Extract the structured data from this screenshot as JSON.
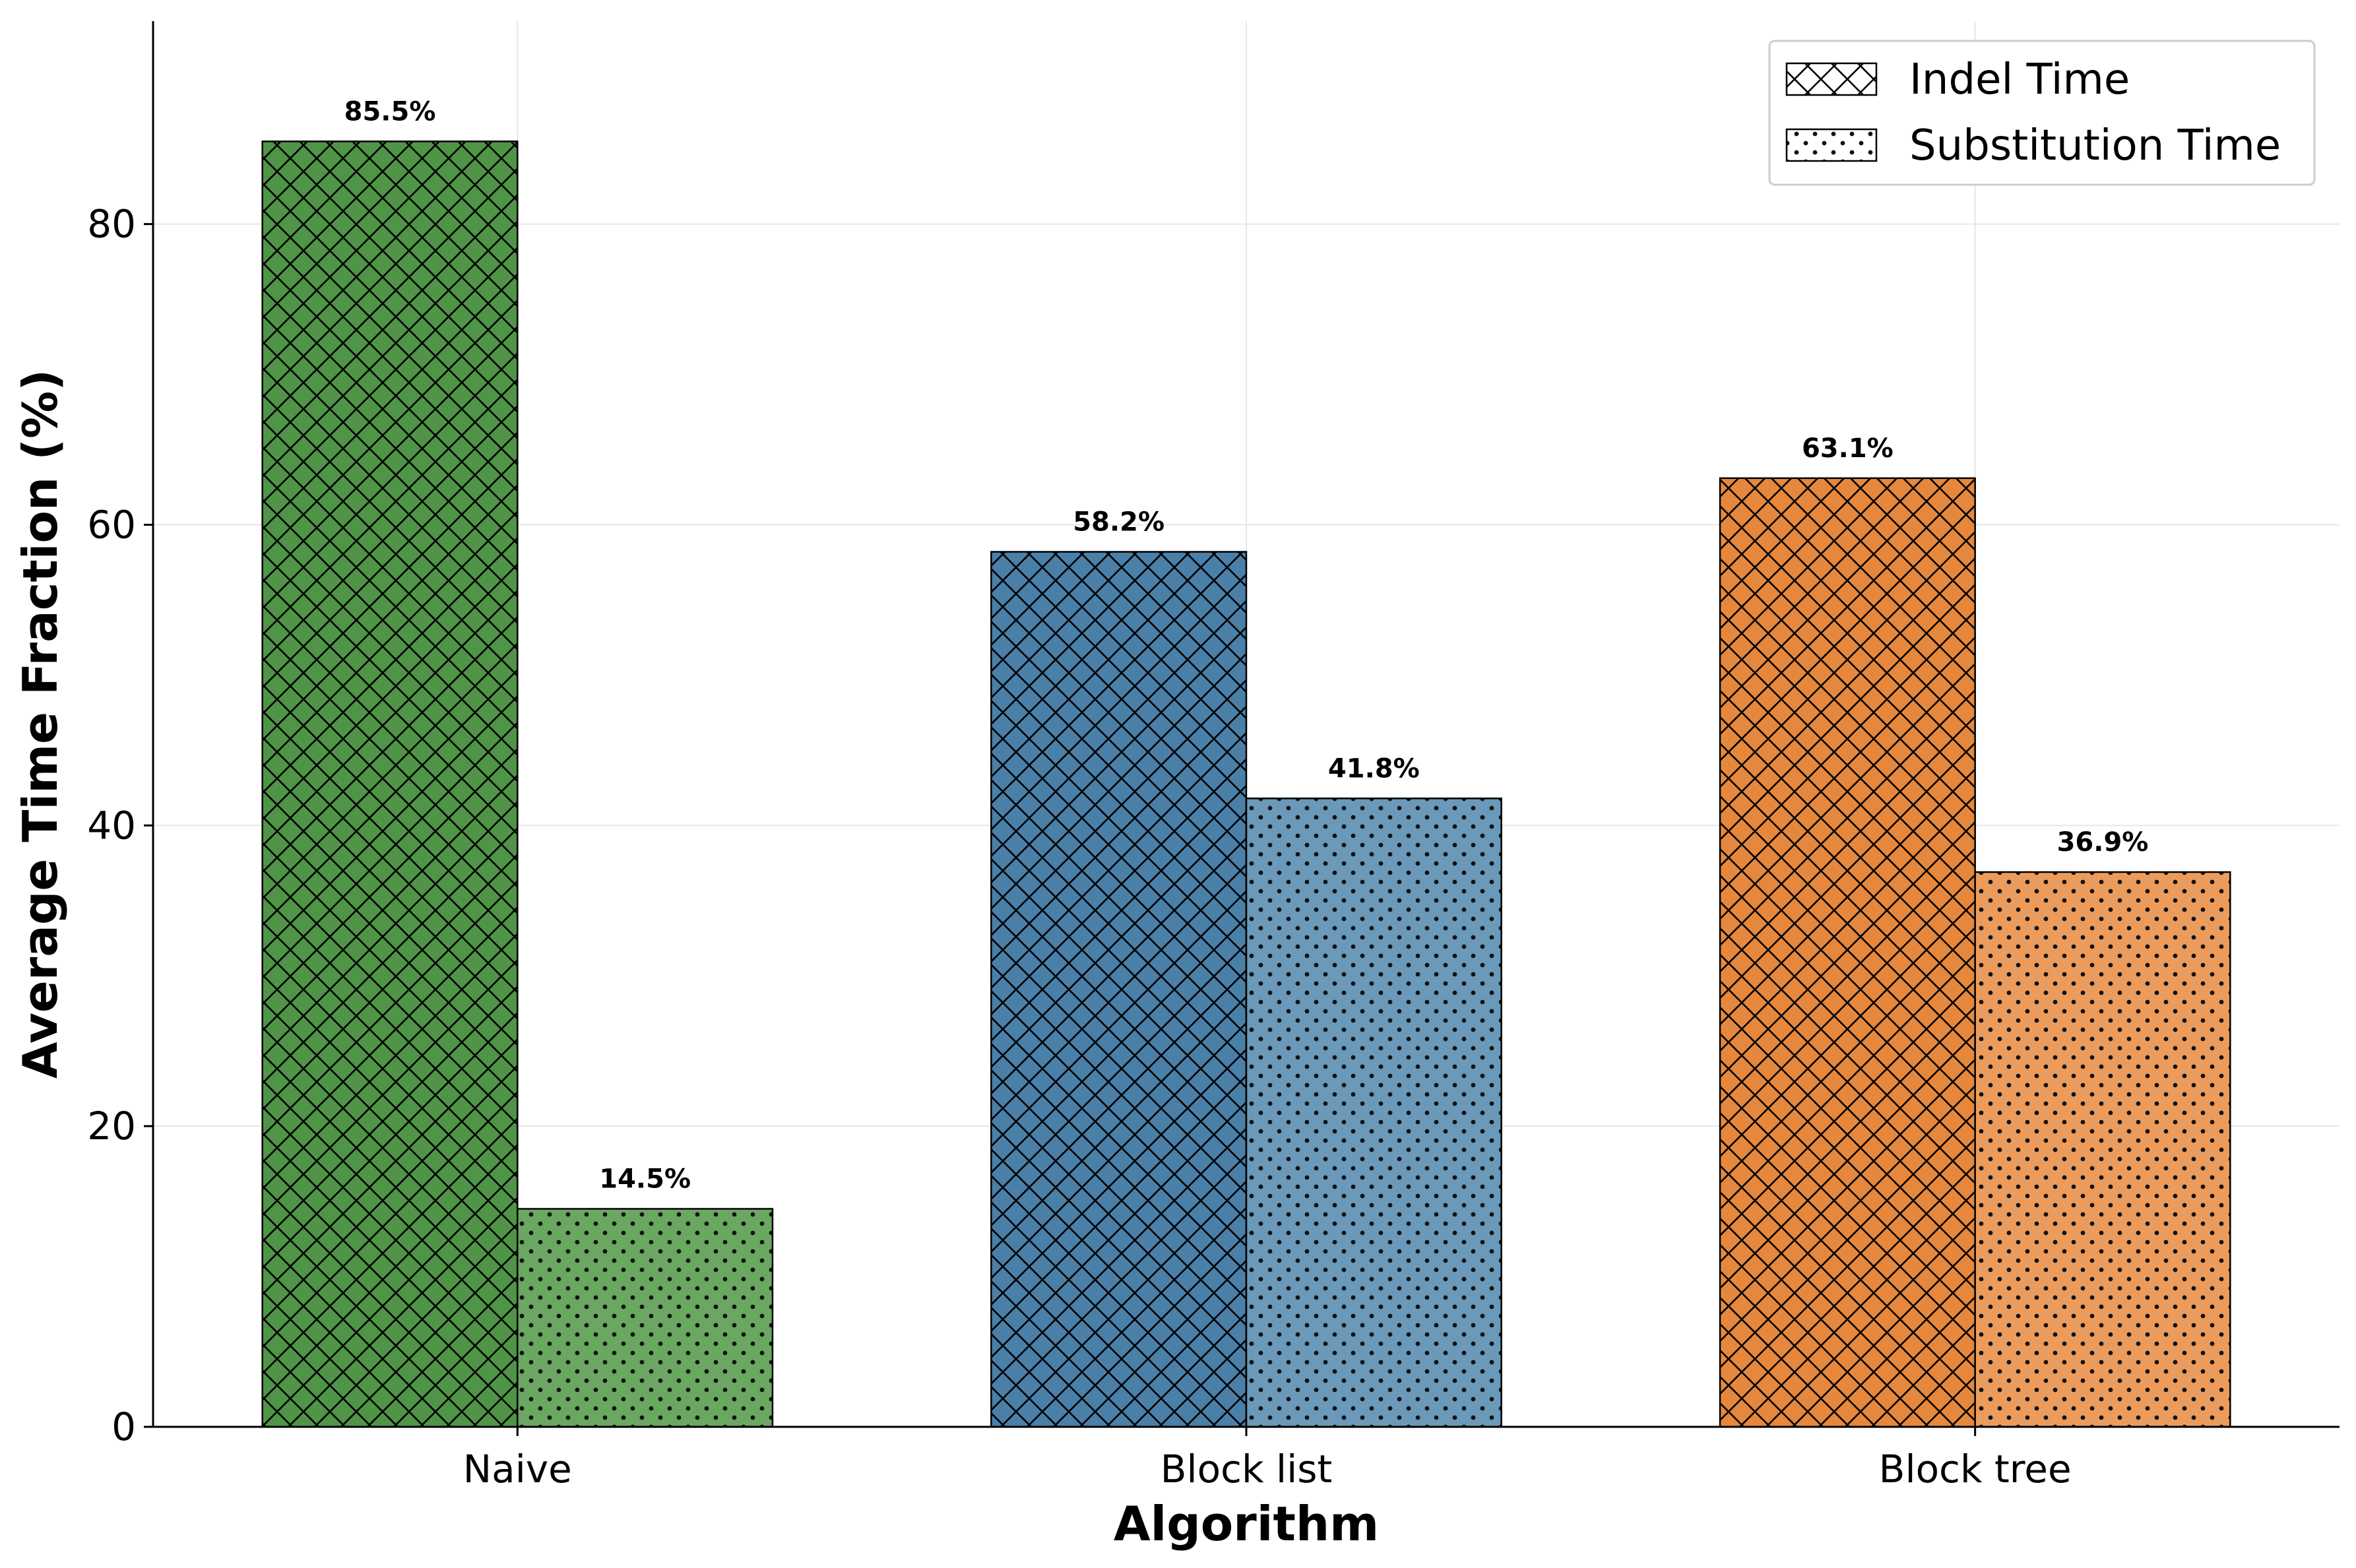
{
  "chart_data": {
    "type": "bar",
    "xlabel": "Algorithm",
    "ylabel": "Average Time Fraction (%)",
    "categories": [
      "Naive",
      "Block list",
      "Block tree"
    ],
    "series": [
      {
        "name": "Indel Time",
        "values": [
          85.5,
          58.2,
          63.1
        ],
        "labels": [
          "85.5%",
          "58.2%",
          "63.1%"
        ],
        "hatch": "crosshatch"
      },
      {
        "name": "Substitution Time",
        "values": [
          14.5,
          41.8,
          36.9
        ],
        "labels": [
          "14.5%",
          "41.8%",
          "36.9%"
        ],
        "hatch": "dots"
      }
    ],
    "category_colors": {
      "indel": [
        "#4f9447",
        "#4a7fa8",
        "#e5883d"
      ],
      "substitution": [
        "#6aa761",
        "#6a99b9",
        "#eb9c5d"
      ]
    },
    "ylim": [
      0,
      93.5
    ],
    "yticks": [
      0,
      20,
      40,
      60,
      80
    ],
    "grid": true,
    "legend_position": "top-right"
  }
}
